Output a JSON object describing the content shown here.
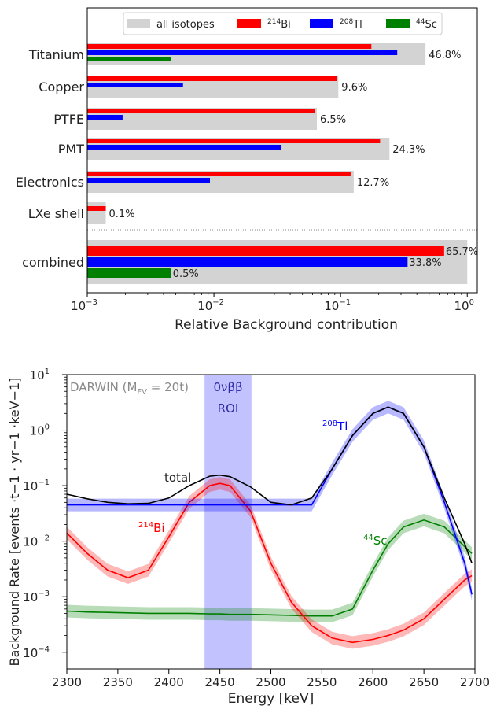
{
  "chart_data": [
    {
      "type": "bar",
      "orientation": "horizontal",
      "xscale": "log",
      "xlim": [
        0.001,
        1.2
      ],
      "xlabel": "Relative Background contribution",
      "x_ticks": [
        "10",
        "10",
        "10",
        "10"
      ],
      "x_tick_exponents": [
        "−3",
        "−2",
        "−1",
        "0"
      ],
      "legend": {
        "placement": "top",
        "entries": [
          {
            "label": "all isotopes",
            "color": "#d3d3d3"
          },
          {
            "label": "Bi",
            "sup": "214",
            "color": "#ff0000"
          },
          {
            "label": "Tl",
            "sup": "208",
            "color": "#0000ff"
          },
          {
            "label": "Sc",
            "sup": "44",
            "color": "#008000"
          }
        ]
      },
      "categories": [
        "Titanium",
        "Copper",
        "PTFE",
        "PMT",
        "Electronics",
        "LXe shell",
        "combined"
      ],
      "series": [
        {
          "name": "all isotopes",
          "color": "#d3d3d3",
          "values": [
            0.468,
            0.096,
            0.065,
            0.243,
            0.127,
            0.0014,
            1.0
          ]
        },
        {
          "name": "Bi",
          "color": "#ff0000",
          "values": [
            0.175,
            0.093,
            0.063,
            0.205,
            0.12,
            0.0014,
            0.657
          ]
        },
        {
          "name": "Tl",
          "color": "#0000ff",
          "values": [
            0.28,
            0.0057,
            0.0019,
            0.034,
            0.0093,
            null,
            0.338
          ]
        },
        {
          "name": "Sc",
          "color": "#008000",
          "values": [
            0.0046,
            null,
            null,
            null,
            null,
            null,
            0.0046
          ]
        }
      ],
      "data_labels": {
        "Titanium": [
          "46.8%"
        ],
        "Copper": [
          "9.6%"
        ],
        "PTFE": [
          "6.5%"
        ],
        "PMT": [
          "24.3%"
        ],
        "Electronics": [
          "12.7%"
        ],
        "LXe shell": [
          "0.1%"
        ],
        "combined": [
          "65.7%",
          "33.8%",
          "0.5%"
        ]
      },
      "grid": false
    },
    {
      "type": "line",
      "yscale": "log",
      "xlim": [
        2300,
        2700
      ],
      "ylim": [
        5e-05,
        10
      ],
      "xlabel": "Energy [keV]",
      "ylabel": "Background Rate [events ·t−1 · yr−1 ·keV−1]",
      "x_ticks": [
        "2300",
        "2350",
        "2400",
        "2450",
        "2500",
        "2550",
        "2600",
        "2650",
        "2700"
      ],
      "y_ticks": [
        "10",
        "10",
        "10",
        "10",
        "10",
        "10"
      ],
      "y_tick_exponents": [
        "−4",
        "−3",
        "−2",
        "−1",
        "0",
        "1"
      ],
      "annotations": {
        "experiment": "DARWIN (M",
        "experiment_sub": "FV",
        "experiment_tail": " = 20t)",
        "roi_line1": "0νββ",
        "roi_line2": "ROI",
        "total": "total",
        "bi": "Bi",
        "bi_sup": "214",
        "tl": "Tl",
        "tl_sup": "208",
        "sc": "Sc",
        "sc_sup": "44"
      },
      "roi": [
        2435,
        2481
      ],
      "x": [
        2300,
        2320,
        2340,
        2360,
        2380,
        2400,
        2420,
        2440,
        2450,
        2460,
        2480,
        2500,
        2520,
        2540,
        2560,
        2580,
        2600,
        2615,
        2630,
        2650,
        2670,
        2690,
        2697
      ],
      "series": [
        {
          "name": "total",
          "color": "#000000",
          "values": [
            0.07,
            0.058,
            0.05,
            0.047,
            0.048,
            0.06,
            0.1,
            0.148,
            0.155,
            0.145,
            0.095,
            0.05,
            0.045,
            0.06,
            0.2,
            0.8,
            2.0,
            2.6,
            2.0,
            0.5,
            0.06,
            0.009,
            0.004
          ]
        },
        {
          "name": "Bi",
          "color": "#ff0000",
          "values": [
            0.014,
            0.006,
            0.003,
            0.0022,
            0.003,
            0.012,
            0.05,
            0.1,
            0.11,
            0.1,
            0.035,
            0.004,
            0.0008,
            0.0003,
            0.00018,
            0.00015,
            0.00017,
            0.0002,
            0.00025,
            0.0004,
            0.0009,
            0.002,
            0.0024
          ]
        },
        {
          "name": "Tl",
          "color": "#0000ff",
          "values": [
            0.045,
            0.045,
            0.045,
            0.045,
            0.045,
            0.045,
            0.045,
            0.045,
            0.045,
            0.045,
            0.045,
            0.045,
            0.045,
            0.045,
            0.2,
            0.8,
            2.0,
            2.6,
            2.0,
            0.5,
            0.05,
            0.004,
            0.0011
          ]
        },
        {
          "name": "Sc",
          "color": "#008000",
          "values": [
            0.00055,
            0.00053,
            0.00052,
            0.00051,
            0.0005,
            0.0005,
            0.0005,
            0.00049,
            0.00049,
            0.00048,
            0.00048,
            0.00047,
            0.00046,
            0.00045,
            0.00045,
            0.0006,
            0.003,
            0.009,
            0.018,
            0.024,
            0.018,
            0.008,
            0.006
          ]
        }
      ],
      "grid": false
    }
  ]
}
